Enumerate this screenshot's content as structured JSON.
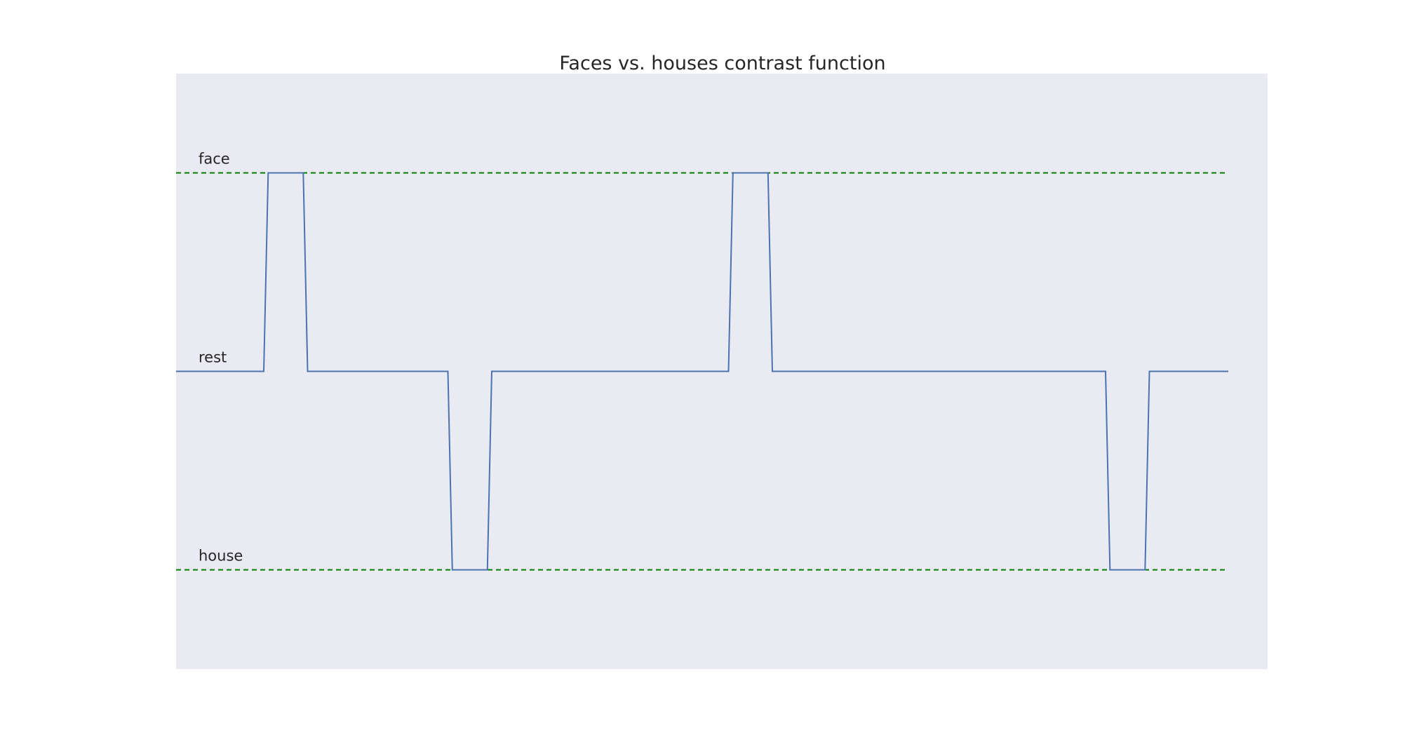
{
  "chart_data": {
    "type": "line",
    "title": "Faces vs. houses contrast function",
    "xlabel": "",
    "ylabel": "",
    "xlim": [
      0,
      48
    ],
    "ylim": [
      -1.5,
      1.5
    ],
    "grid": false,
    "background": "#eaeaf2",
    "series": [
      {
        "color": "#4c72b0",
        "x": [
          0,
          4,
          4.2,
          5.8,
          6,
          12.4,
          12.6,
          14.2,
          14.4,
          25.2,
          25.4,
          27.0,
          27.2,
          42.4,
          42.6,
          44.2,
          44.4,
          48
        ],
        "y": [
          0,
          0,
          1,
          1,
          0,
          0,
          -1,
          -1,
          0,
          0,
          1,
          1,
          0,
          0,
          -1,
          -1,
          0,
          0
        ]
      }
    ],
    "reference_lines": [
      {
        "y": 1,
        "color": "#008000",
        "style": "dashed"
      },
      {
        "y": -1,
        "color": "#008000",
        "style": "dashed"
      }
    ],
    "level_labels": [
      {
        "text": "face",
        "y": 1
      },
      {
        "text": "rest",
        "y": 0
      },
      {
        "text": "house",
        "y": -1
      }
    ]
  }
}
